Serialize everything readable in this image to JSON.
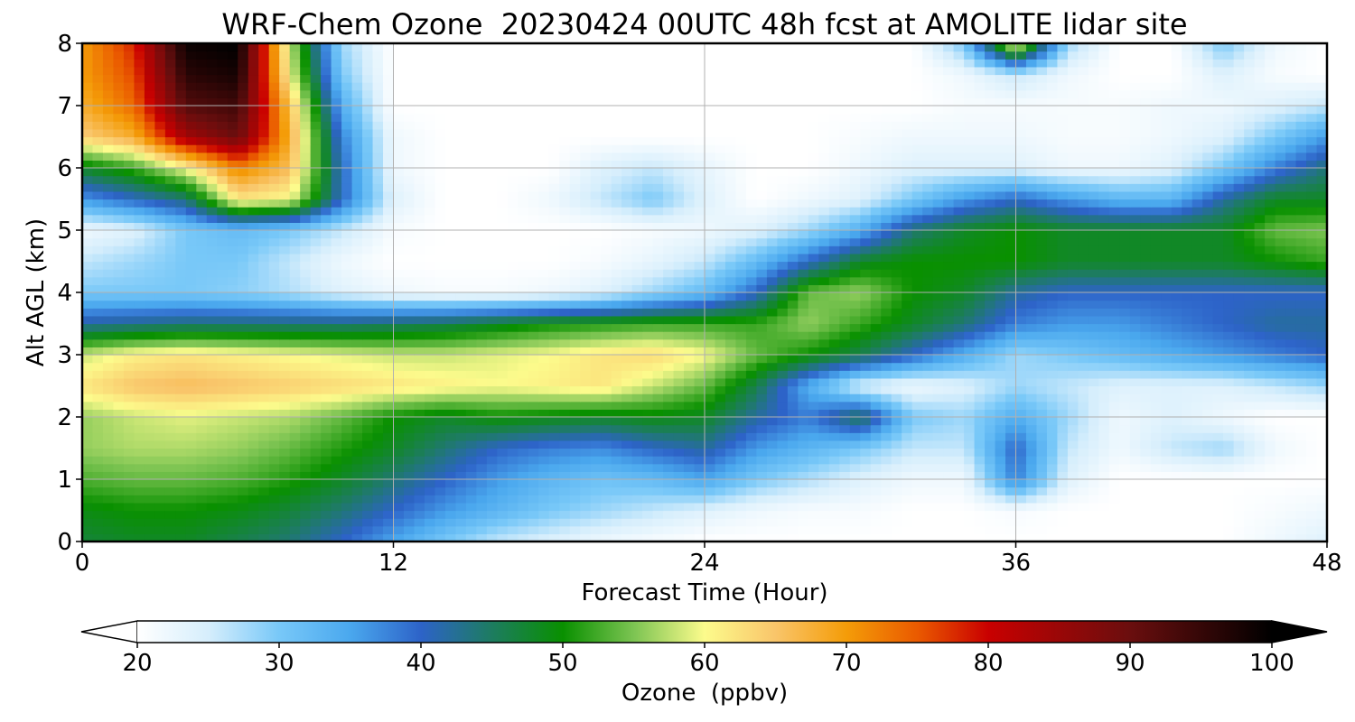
{
  "chart_data": {
    "type": "heatmap",
    "title": "WRF-Chem Ozone  20230424 00UTC 48h fcst at AMOLITE lidar site",
    "xlabel": "Forecast Time (Hour)",
    "ylabel": "Alt AGL (km)",
    "xlim": [
      0,
      48
    ],
    "ylim": [
      0,
      8
    ],
    "x_ticks": [
      "0",
      "12",
      "24",
      "36",
      "48"
    ],
    "y_ticks": [
      "0",
      "1",
      "2",
      "3",
      "4",
      "5",
      "6",
      "7",
      "8"
    ],
    "grid": true,
    "x": [
      0,
      2,
      4,
      6,
      8,
      10,
      12,
      14,
      16,
      18,
      20,
      22,
      24,
      26,
      28,
      30,
      32,
      34,
      36,
      38,
      40,
      42,
      44,
      46,
      48
    ],
    "y": [
      0,
      0.5,
      1,
      1.5,
      2,
      2.5,
      3,
      3.5,
      4,
      4.5,
      5,
      5.5,
      6,
      6.5,
      7,
      7.5,
      8
    ],
    "z": [
      [
        47,
        48,
        48,
        46,
        44,
        40,
        35,
        30,
        26,
        24,
        22,
        21,
        20,
        20,
        20,
        20,
        20,
        20,
        20,
        20,
        20,
        20,
        20,
        22,
        24
      ],
      [
        49,
        50,
        50,
        49,
        47,
        44,
        40,
        36,
        33,
        30,
        28,
        26,
        24,
        22,
        21,
        21,
        20,
        20,
        21,
        20,
        20,
        20,
        20,
        21,
        22
      ],
      [
        53,
        54,
        54,
        53,
        51,
        48,
        44,
        40,
        36,
        33,
        31,
        32,
        35,
        30,
        27,
        24,
        22,
        22,
        38,
        24,
        20,
        20,
        20,
        20,
        20
      ],
      [
        56,
        57,
        57,
        56,
        54,
        51,
        48,
        44,
        40,
        38,
        37,
        40,
        42,
        36,
        33,
        30,
        26,
        26,
        40,
        26,
        22,
        26,
        28,
        22,
        20
      ],
      [
        56,
        58,
        59,
        58,
        57,
        54,
        50,
        48,
        50,
        49,
        48,
        49,
        48,
        42,
        38,
        46,
        30,
        28,
        34,
        28,
        22,
        24,
        22,
        20,
        20
      ],
      [
        62,
        65,
        66,
        65,
        64,
        63,
        62,
        61,
        60,
        61,
        62,
        58,
        54,
        46,
        34,
        24,
        22,
        24,
        28,
        26,
        24,
        24,
        24,
        26,
        28
      ],
      [
        58,
        61,
        62,
        61,
        60,
        59,
        58,
        58,
        59,
        60,
        62,
        63,
        60,
        54,
        50,
        46,
        40,
        34,
        28,
        30,
        32,
        34,
        36,
        38,
        40
      ],
      [
        42,
        43,
        44,
        44,
        44,
        44,
        45,
        46,
        48,
        50,
        51,
        52,
        52,
        52,
        56,
        52,
        48,
        44,
        38,
        36,
        36,
        38,
        40,
        42,
        42
      ],
      [
        30,
        30,
        30,
        29,
        27,
        24,
        22,
        21,
        21,
        22,
        24,
        28,
        32,
        40,
        54,
        56,
        50,
        48,
        42,
        40,
        40,
        40,
        40,
        40,
        40
      ],
      [
        26,
        28,
        30,
        30,
        26,
        22,
        20,
        20,
        20,
        20,
        21,
        23,
        26,
        32,
        40,
        48,
        50,
        50,
        50,
        48,
        48,
        48,
        48,
        50,
        52
      ],
      [
        22,
        24,
        30,
        32,
        30,
        26,
        21,
        20,
        20,
        20,
        20,
        21,
        22,
        24,
        28,
        34,
        44,
        48,
        50,
        48,
        48,
        48,
        48,
        54,
        55
      ],
      [
        36,
        40,
        44,
        62,
        60,
        40,
        24,
        20,
        20,
        22,
        26,
        30,
        24,
        20,
        22,
        24,
        30,
        36,
        40,
        36,
        33,
        33,
        42,
        48,
        48
      ],
      [
        48,
        52,
        60,
        72,
        66,
        40,
        22,
        20,
        20,
        20,
        24,
        26,
        23,
        20,
        20,
        22,
        24,
        24,
        24,
        22,
        22,
        24,
        30,
        38,
        44
      ],
      [
        64,
        68,
        84,
        90,
        68,
        38,
        22,
        20,
        20,
        20,
        20,
        20,
        20,
        20,
        20,
        21,
        22,
        22,
        22,
        21,
        21,
        22,
        24,
        30,
        36
      ],
      [
        68,
        74,
        92,
        94,
        66,
        34,
        20,
        20,
        20,
        20,
        20,
        20,
        20,
        20,
        20,
        20,
        20,
        21,
        21,
        21,
        21,
        22,
        22,
        24,
        26
      ],
      [
        70,
        76,
        96,
        98,
        60,
        30,
        20,
        20,
        20,
        20,
        20,
        20,
        20,
        20,
        20,
        20,
        20,
        22,
        26,
        22,
        20,
        20,
        24,
        21,
        20
      ],
      [
        70,
        78,
        99,
        100,
        58,
        28,
        20,
        20,
        20,
        20,
        20,
        20,
        20,
        20,
        20,
        20,
        20,
        30,
        62,
        28,
        20,
        20,
        30,
        22,
        20
      ]
    ],
    "colorbar": {
      "label": "Ozone  (ppbv)",
      "min": 20,
      "max": 100,
      "ticks": [
        "20",
        "30",
        "40",
        "50",
        "60",
        "70",
        "80",
        "90",
        "100"
      ],
      "extend": "both",
      "stops": [
        {
          "v": 20,
          "c": "#ffffff"
        },
        {
          "v": 25,
          "c": "#d6eefc"
        },
        {
          "v": 30,
          "c": "#78c8f8"
        },
        {
          "v": 35,
          "c": "#4aa8ee"
        },
        {
          "v": 40,
          "c": "#2d63c8"
        },
        {
          "v": 45,
          "c": "#1d7c60"
        },
        {
          "v": 50,
          "c": "#099000"
        },
        {
          "v": 55,
          "c": "#7cc452"
        },
        {
          "v": 60,
          "c": "#fcfb8c"
        },
        {
          "v": 65,
          "c": "#f9c56a"
        },
        {
          "v": 70,
          "c": "#f49c08"
        },
        {
          "v": 75,
          "c": "#ea5a00"
        },
        {
          "v": 80,
          "c": "#c90000"
        },
        {
          "v": 90,
          "c": "#6a0e0e"
        },
        {
          "v": 100,
          "c": "#000000"
        }
      ]
    }
  }
}
